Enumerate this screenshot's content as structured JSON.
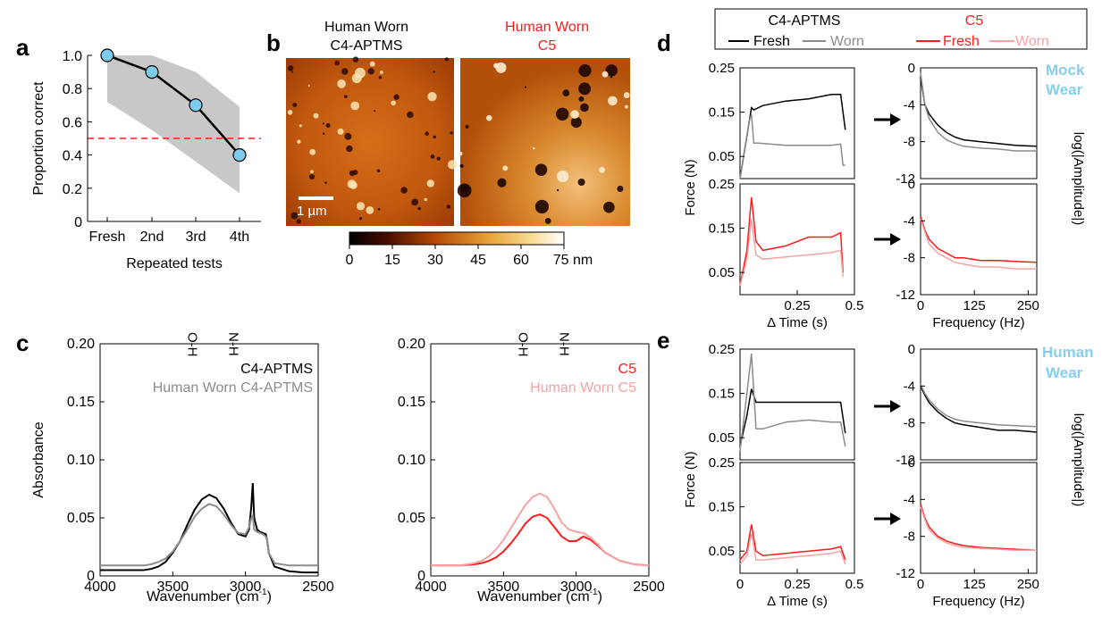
{
  "panel_letters": {
    "a": "a",
    "b": "b",
    "c": "c",
    "d": "d",
    "e": "e"
  },
  "colors": {
    "black": "#000000",
    "gray": "#8c8c8c",
    "red": "#ff1a1a",
    "pink": "#f4a3a3",
    "blue_marker": "#7fcbed",
    "band": "#c8c8c8",
    "label_blue": "#87cdee"
  },
  "panel_b": {
    "label_left_line1": "Human Worn",
    "label_left_line2": "C4-APTMS",
    "label_right_line1": "Human Worn",
    "label_right_line2": "C5",
    "scale_bar": "1 µm",
    "colorbar_ticks": [
      "0",
      "15",
      "30",
      "45",
      "60",
      "75 nm"
    ]
  },
  "legend_d": {
    "c4_title": "C4-APTMS",
    "c5_title": "C5",
    "fresh": "Fresh",
    "worn": "Worn"
  },
  "side_labels": {
    "mock_line1": "Mock",
    "mock_line2": "Wear",
    "human_line1": "Human",
    "human_line2": "Wear"
  },
  "chart_data": [
    {
      "id": "a",
      "type": "line",
      "categories": [
        "Fresh",
        "2nd",
        "3rd",
        "4th"
      ],
      "series": [
        {
          "values": [
            1.0,
            0.9,
            0.7,
            0.4
          ]
        }
      ],
      "band": {
        "upper": [
          1.0,
          1.0,
          0.9,
          0.69
        ],
        "lower": [
          0.72,
          0.55,
          0.36,
          0.17
        ]
      },
      "reference_line": 0.5,
      "ylim": [
        0,
        1.0
      ],
      "yticks": [
        "0",
        "0.2",
        "0.4",
        "0.6",
        "0.8",
        "1.0"
      ],
      "xlabel": "Repeated tests",
      "ylabel": "Proportion correct"
    },
    {
      "id": "c1",
      "type": "line",
      "xlim": [
        4000,
        2500
      ],
      "ylim": [
        0,
        0.2
      ],
      "xticks": [
        "4000",
        "3500",
        "3000",
        "2500"
      ],
      "yticks": [
        "0",
        "0.05",
        "0.10",
        "0.15",
        "0.20"
      ],
      "xlabel": "Wavenumber (cm",
      "xlabel_sup": "-1",
      "xlabel_end": ")",
      "ylabel": "Absorbance",
      "annotations": [
        "O-H",
        "N-H"
      ],
      "annotation_x": [
        3270,
        2990
      ],
      "series": [
        {
          "name": "C4-APTMS",
          "x": [
            4000,
            3900,
            3800,
            3700,
            3650,
            3600,
            3550,
            3500,
            3450,
            3400,
            3350,
            3300,
            3250,
            3200,
            3150,
            3100,
            3050,
            3000,
            2975,
            2960,
            2950,
            2940,
            2920,
            2900,
            2880,
            2860,
            2850,
            2840,
            2800,
            2700,
            2600,
            2500
          ],
          "y": [
            0.005,
            0.005,
            0.005,
            0.005,
            0.006,
            0.008,
            0.012,
            0.02,
            0.03,
            0.044,
            0.057,
            0.066,
            0.07,
            0.067,
            0.058,
            0.046,
            0.036,
            0.034,
            0.04,
            0.06,
            0.08,
            0.05,
            0.04,
            0.038,
            0.037,
            0.036,
            0.03,
            0.02,
            0.008,
            0.004,
            0.003,
            0.003
          ]
        },
        {
          "name": "Human Worn C4-APTMS",
          "x": [
            4000,
            3900,
            3800,
            3700,
            3650,
            3600,
            3550,
            3500,
            3450,
            3400,
            3350,
            3300,
            3250,
            3200,
            3150,
            3100,
            3050,
            3000,
            2975,
            2960,
            2950,
            2940,
            2920,
            2900,
            2880,
            2860,
            2850,
            2840,
            2800,
            2700,
            2600,
            2500
          ],
          "y": [
            0.009,
            0.009,
            0.009,
            0.009,
            0.01,
            0.012,
            0.015,
            0.021,
            0.03,
            0.04,
            0.051,
            0.058,
            0.062,
            0.06,
            0.053,
            0.044,
            0.037,
            0.036,
            0.042,
            0.05,
            0.052,
            0.04,
            0.038,
            0.037,
            0.036,
            0.034,
            0.03,
            0.02,
            0.011,
            0.009,
            0.009,
            0.009
          ]
        }
      ]
    },
    {
      "id": "c2",
      "type": "line",
      "xlim": [
        4000,
        2500
      ],
      "ylim": [
        0,
        0.2
      ],
      "xticks": [
        "4000",
        "3500",
        "3000",
        "2500"
      ],
      "yticks": [
        "0",
        "0.05",
        "0.10",
        "0.15",
        "0.20"
      ],
      "xlabel": "Wavenumber (cm",
      "xlabel_sup": "-1",
      "xlabel_end": ")",
      "annotations": [
        "O-H",
        "N-H"
      ],
      "annotation_x": [
        3270,
        2990
      ],
      "series": [
        {
          "name": "C5",
          "x": [
            4000,
            3900,
            3800,
            3700,
            3650,
            3600,
            3550,
            3500,
            3450,
            3400,
            3350,
            3300,
            3250,
            3200,
            3150,
            3100,
            3050,
            3000,
            2950,
            2900,
            2850,
            2800,
            2700,
            2600,
            2500
          ],
          "y": [
            0.009,
            0.009,
            0.009,
            0.01,
            0.011,
            0.013,
            0.016,
            0.021,
            0.028,
            0.036,
            0.045,
            0.051,
            0.053,
            0.05,
            0.042,
            0.034,
            0.03,
            0.03,
            0.034,
            0.031,
            0.026,
            0.02,
            0.013,
            0.01,
            0.009
          ]
        },
        {
          "name": "Human Worn C5",
          "x": [
            4000,
            3900,
            3800,
            3700,
            3650,
            3600,
            3550,
            3500,
            3450,
            3400,
            3350,
            3300,
            3250,
            3200,
            3150,
            3100,
            3050,
            3000,
            2950,
            2900,
            2850,
            2800,
            2700,
            2600,
            2500
          ],
          "y": [
            0.009,
            0.009,
            0.009,
            0.011,
            0.013,
            0.017,
            0.023,
            0.031,
            0.041,
            0.051,
            0.061,
            0.068,
            0.071,
            0.068,
            0.058,
            0.046,
            0.04,
            0.038,
            0.037,
            0.033,
            0.027,
            0.02,
            0.013,
            0.01,
            0.009
          ]
        }
      ]
    },
    {
      "id": "d_force_c4",
      "type": "line",
      "xlim": [
        0,
        0.5
      ],
      "ylim": [
        0,
        0.25
      ],
      "yticks": [
        "0.05",
        "0.15",
        "0.25"
      ],
      "series": [
        {
          "name": "Fresh",
          "x": [
            0,
            0.05,
            0.06,
            0.1,
            0.2,
            0.3,
            0.4,
            0.44,
            0.46
          ],
          "y": [
            0.0,
            0.16,
            0.155,
            0.165,
            0.175,
            0.18,
            0.19,
            0.19,
            0.11
          ]
        },
        {
          "name": "Worn",
          "x": [
            0,
            0.04,
            0.05,
            0.06,
            0.08,
            0.2,
            0.3,
            0.4,
            0.44,
            0.45,
            0.46
          ],
          "y": [
            0.0,
            0.13,
            0.145,
            0.08,
            0.08,
            0.075,
            0.075,
            0.075,
            0.078,
            0.03,
            0.03
          ]
        }
      ]
    },
    {
      "id": "d_fft_c4",
      "type": "line",
      "xlim": [
        0,
        270
      ],
      "ylim": [
        -12,
        0
      ],
      "yticks": [
        "0",
        "-4",
        "-8",
        "-12"
      ],
      "ylabel": "log(|Amplitude|)",
      "series": [
        {
          "name": "Fresh",
          "x": [
            0,
            10,
            20,
            40,
            60,
            80,
            100,
            140,
            180,
            220,
            270
          ],
          "y": [
            -1.0,
            -4.0,
            -5.0,
            -6.2,
            -7.0,
            -7.5,
            -7.8,
            -8.0,
            -8.2,
            -8.4,
            -8.5
          ]
        },
        {
          "name": "Worn",
          "x": [
            0,
            10,
            20,
            40,
            60,
            80,
            100,
            140,
            180,
            220,
            270
          ],
          "y": [
            -0.5,
            -4.0,
            -5.5,
            -7.0,
            -7.8,
            -8.2,
            -8.5,
            -8.7,
            -8.8,
            -9.0,
            -9.0
          ]
        }
      ]
    },
    {
      "id": "d_force_c5",
      "type": "line",
      "xlim": [
        0,
        0.5
      ],
      "xticks": [
        "0.25",
        "0.5"
      ],
      "ylim": [
        0,
        0.25
      ],
      "yticks": [
        "0.05",
        "0.15",
        "0.25"
      ],
      "xlabel": "Δ Time (s)",
      "series": [
        {
          "name": "Fresh",
          "x": [
            0,
            0.03,
            0.05,
            0.07,
            0.1,
            0.2,
            0.3,
            0.4,
            0.44,
            0.45
          ],
          "y": [
            0.02,
            0.1,
            0.22,
            0.12,
            0.1,
            0.11,
            0.13,
            0.13,
            0.14,
            0.05
          ]
        },
        {
          "name": "Worn",
          "x": [
            0,
            0.03,
            0.05,
            0.07,
            0.1,
            0.2,
            0.3,
            0.4,
            0.44,
            0.45
          ],
          "y": [
            0.02,
            0.08,
            0.17,
            0.09,
            0.08,
            0.085,
            0.09,
            0.095,
            0.1,
            0.04
          ]
        }
      ]
    },
    {
      "id": "d_fft_c5",
      "type": "line",
      "xlim": [
        0,
        270
      ],
      "xticks": [
        "0",
        "125",
        "250"
      ],
      "ylim": [
        -12,
        0
      ],
      "yticks": [
        "0",
        "-4",
        "-8",
        "-12"
      ],
      "xlabel": "Frequency (Hz)",
      "series": [
        {
          "name": "Fresh",
          "x": [
            0,
            10,
            20,
            40,
            60,
            80,
            100,
            140,
            180,
            220,
            270
          ],
          "y": [
            -3.5,
            -5.0,
            -6.0,
            -7.0,
            -7.5,
            -8.0,
            -8.0,
            -8.3,
            -8.3,
            -8.4,
            -8.5
          ]
        },
        {
          "name": "Worn",
          "x": [
            0,
            10,
            20,
            40,
            60,
            80,
            100,
            140,
            180,
            220,
            270
          ],
          "y": [
            -3.8,
            -5.2,
            -6.5,
            -7.5,
            -8.0,
            -8.5,
            -8.7,
            -9.0,
            -9.0,
            -9.2,
            -9.2
          ]
        }
      ]
    },
    {
      "id": "e_force_c4",
      "type": "line",
      "xlim": [
        0,
        0.5
      ],
      "ylim": [
        0,
        0.25
      ],
      "yticks": [
        "0.05",
        "0.15",
        "0.25"
      ],
      "series": [
        {
          "name": "Fresh",
          "x": [
            0,
            0.03,
            0.05,
            0.07,
            0.1,
            0.2,
            0.3,
            0.4,
            0.44,
            0.46
          ],
          "y": [
            0.03,
            0.1,
            0.16,
            0.13,
            0.13,
            0.13,
            0.13,
            0.13,
            0.13,
            0.06
          ]
        },
        {
          "name": "Worn",
          "x": [
            0,
            0.03,
            0.05,
            0.07,
            0.1,
            0.2,
            0.3,
            0.4,
            0.44,
            0.46
          ],
          "y": [
            0.02,
            0.15,
            0.24,
            0.07,
            0.07,
            0.085,
            0.09,
            0.085,
            0.085,
            0.03
          ]
        }
      ]
    },
    {
      "id": "e_fft_c4",
      "type": "line",
      "xlim": [
        0,
        270
      ],
      "ylim": [
        -12,
        0
      ],
      "yticks": [
        "0",
        "-4",
        "-8",
        "-12"
      ],
      "ylabel": "log(|Amplitude|)",
      "series": [
        {
          "name": "Fresh",
          "x": [
            0,
            10,
            20,
            40,
            60,
            80,
            100,
            140,
            180,
            220,
            270
          ],
          "y": [
            -4.0,
            -5.0,
            -5.8,
            -6.8,
            -7.5,
            -8.0,
            -8.2,
            -8.5,
            -8.8,
            -8.8,
            -9.0
          ]
        },
        {
          "name": "Worn",
          "x": [
            0,
            10,
            20,
            40,
            60,
            80,
            100,
            140,
            180,
            220,
            270
          ],
          "y": [
            -3.8,
            -4.8,
            -5.5,
            -6.5,
            -7.2,
            -7.6,
            -7.8,
            -8.0,
            -8.2,
            -8.3,
            -8.4
          ]
        }
      ]
    },
    {
      "id": "e_force_c5",
      "type": "line",
      "xlim": [
        0,
        0.5
      ],
      "xticks": [
        "0",
        "0.25",
        "0.5"
      ],
      "ylim": [
        0,
        0.25
      ],
      "yticks": [
        "0.05",
        "0.15",
        "0.25"
      ],
      "xlabel": "Δ Time (s)",
      "series": [
        {
          "name": "Fresh",
          "x": [
            0,
            0.03,
            0.05,
            0.07,
            0.1,
            0.2,
            0.3,
            0.4,
            0.44,
            0.46
          ],
          "y": [
            0.03,
            0.05,
            0.11,
            0.05,
            0.04,
            0.045,
            0.05,
            0.055,
            0.06,
            0.03
          ]
        },
        {
          "name": "Worn",
          "x": [
            0,
            0.03,
            0.05,
            0.07,
            0.1,
            0.2,
            0.3,
            0.4,
            0.44,
            0.46
          ],
          "y": [
            0.02,
            0.04,
            0.09,
            0.03,
            0.03,
            0.035,
            0.04,
            0.045,
            0.05,
            0.02
          ]
        }
      ]
    },
    {
      "id": "e_fft_c5",
      "type": "line",
      "xlim": [
        0,
        270
      ],
      "xticks": [
        "0",
        "125",
        "250"
      ],
      "ylim": [
        -12,
        0
      ],
      "yticks": [
        "0",
        "-4",
        "-8",
        "-12"
      ],
      "xlabel": "Frequency (Hz)",
      "series": [
        {
          "name": "Fresh",
          "x": [
            0,
            10,
            20,
            40,
            60,
            80,
            100,
            140,
            180,
            220,
            270
          ],
          "y": [
            -4.5,
            -6.0,
            -7.0,
            -8.0,
            -8.5,
            -8.8,
            -9.0,
            -9.2,
            -9.3,
            -9.4,
            -9.5
          ]
        },
        {
          "name": "Worn",
          "x": [
            0,
            10,
            20,
            40,
            60,
            80,
            100,
            140,
            180,
            220,
            270
          ],
          "y": [
            -4.8,
            -6.2,
            -7.3,
            -8.2,
            -8.7,
            -9.0,
            -9.2,
            -9.3,
            -9.4,
            -9.5,
            -9.5
          ]
        }
      ]
    }
  ],
  "force_ylabel": "Force (N)"
}
